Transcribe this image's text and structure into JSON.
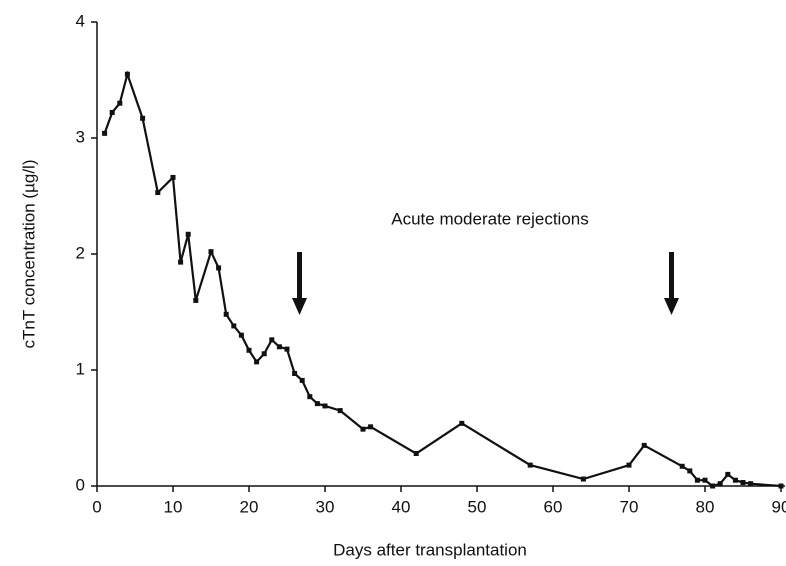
{
  "chart_data": {
    "type": "line",
    "xlabel": "Days after transplantation",
    "ylabel": "cTnT concentration (µg/l)",
    "annotation": "Acute moderate rejections",
    "x": [
      1,
      2,
      3,
      4,
      6,
      8,
      10,
      11,
      12,
      13,
      15,
      16,
      17,
      18,
      19,
      20,
      21,
      22,
      23,
      24,
      25,
      26,
      27,
      28,
      29,
      30,
      32,
      35,
      36,
      42,
      48,
      57,
      64,
      70,
      72,
      77,
      78,
      79,
      80,
      81,
      82,
      83,
      84,
      85,
      86,
      90
    ],
    "series": [
      {
        "name": "cTnT",
        "color": "#111111",
        "values": [
          3.04,
          3.22,
          3.3,
          3.55,
          3.17,
          2.53,
          2.66,
          1.93,
          2.17,
          1.6,
          2.02,
          1.88,
          1.48,
          1.38,
          1.3,
          1.17,
          1.07,
          1.14,
          1.26,
          1.2,
          1.18,
          0.97,
          0.91,
          0.77,
          0.71,
          0.69,
          0.65,
          0.49,
          0.51,
          0.28,
          0.54,
          0.18,
          0.06,
          0.18,
          0.35,
          0.17,
          0.13,
          0.05,
          0.05,
          0.0,
          0.02,
          0.1,
          0.05,
          0.03,
          0.02,
          0.0
        ]
      }
    ],
    "xlim": [
      0,
      90
    ],
    "xticks": [
      0,
      10,
      20,
      30,
      40,
      50,
      60,
      70,
      80,
      90
    ],
    "ylim": [
      0,
      4
    ],
    "yticks": [
      0,
      1,
      2,
      3,
      4
    ]
  }
}
